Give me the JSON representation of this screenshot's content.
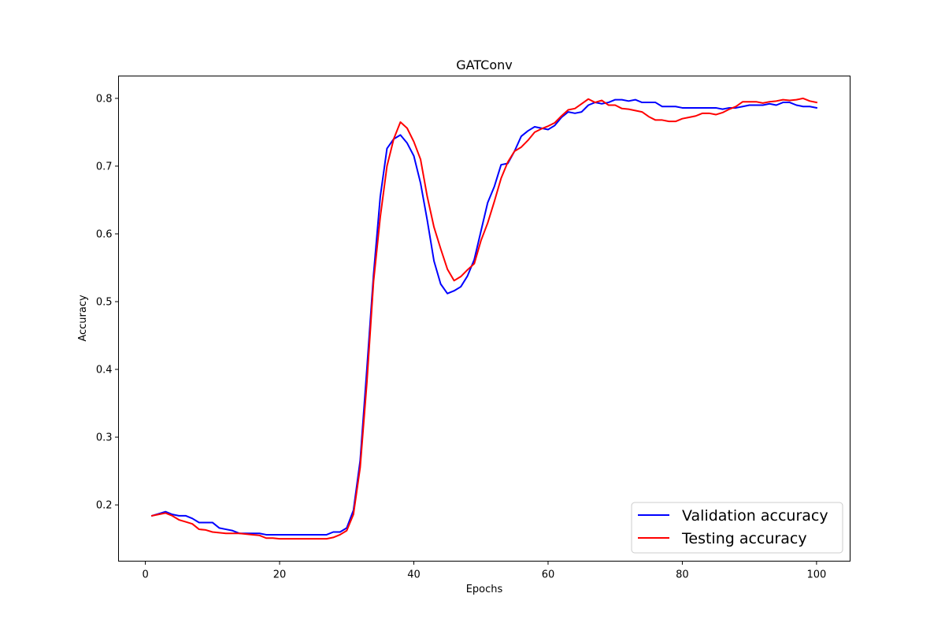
{
  "chart_data": {
    "type": "line",
    "title": "GATConv",
    "xlabel": "Epochs",
    "ylabel": "Accuracy",
    "xlim": [
      -4,
      105
    ],
    "ylim": [
      0.117,
      0.833
    ],
    "xticks": [
      0,
      20,
      40,
      60,
      80,
      100
    ],
    "yticks": [
      0.2,
      0.3,
      0.4,
      0.5,
      0.6,
      0.7,
      0.8
    ],
    "x": [
      1,
      2,
      3,
      4,
      5,
      6,
      7,
      8,
      9,
      10,
      11,
      12,
      13,
      14,
      15,
      16,
      17,
      18,
      19,
      20,
      21,
      22,
      23,
      24,
      25,
      26,
      27,
      28,
      29,
      30,
      31,
      32,
      33,
      34,
      35,
      36,
      37,
      38,
      39,
      40,
      41,
      42,
      43,
      44,
      45,
      46,
      47,
      48,
      49,
      50,
      51,
      52,
      53,
      54,
      55,
      56,
      57,
      58,
      59,
      60,
      61,
      62,
      63,
      64,
      65,
      66,
      67,
      68,
      69,
      70,
      71,
      72,
      73,
      74,
      75,
      76,
      77,
      78,
      79,
      80,
      81,
      82,
      83,
      84,
      85,
      86,
      87,
      88,
      89,
      90,
      91,
      92,
      93,
      94,
      95,
      96,
      97,
      98,
      99,
      100
    ],
    "series": [
      {
        "name": "Validation accuracy",
        "color": "#0000ff",
        "values": [
          0.184,
          0.187,
          0.19,
          0.186,
          0.184,
          0.184,
          0.18,
          0.174,
          0.174,
          0.174,
          0.166,
          0.164,
          0.162,
          0.158,
          0.158,
          0.158,
          0.158,
          0.156,
          0.156,
          0.156,
          0.156,
          0.156,
          0.156,
          0.156,
          0.156,
          0.156,
          0.156,
          0.16,
          0.16,
          0.166,
          0.192,
          0.265,
          0.4,
          0.54,
          0.655,
          0.726,
          0.74,
          0.746,
          0.734,
          0.715,
          0.675,
          0.62,
          0.56,
          0.526,
          0.512,
          0.516,
          0.522,
          0.538,
          0.562,
          0.604,
          0.646,
          0.67,
          0.702,
          0.704,
          0.722,
          0.744,
          0.752,
          0.758,
          0.756,
          0.754,
          0.76,
          0.772,
          0.78,
          0.778,
          0.78,
          0.79,
          0.794,
          0.792,
          0.794,
          0.798,
          0.798,
          0.796,
          0.798,
          0.794,
          0.794,
          0.794,
          0.788,
          0.788,
          0.788,
          0.786,
          0.786,
          0.786,
          0.786,
          0.786,
          0.786,
          0.784,
          0.786,
          0.786,
          0.788,
          0.79,
          0.79,
          0.79,
          0.792,
          0.79,
          0.794,
          0.794,
          0.79,
          0.788,
          0.788,
          0.786
        ]
      },
      {
        "name": "Testing accuracy",
        "color": "#ff0000",
        "values": [
          0.184,
          0.186,
          0.188,
          0.184,
          0.178,
          0.175,
          0.172,
          0.164,
          0.163,
          0.16,
          0.159,
          0.158,
          0.158,
          0.158,
          0.157,
          0.156,
          0.155,
          0.151,
          0.151,
          0.15,
          0.15,
          0.15,
          0.15,
          0.15,
          0.15,
          0.15,
          0.15,
          0.152,
          0.156,
          0.162,
          0.186,
          0.255,
          0.38,
          0.53,
          0.625,
          0.7,
          0.74,
          0.765,
          0.756,
          0.736,
          0.71,
          0.655,
          0.61,
          0.578,
          0.548,
          0.531,
          0.537,
          0.547,
          0.556,
          0.59,
          0.616,
          0.648,
          0.682,
          0.706,
          0.722,
          0.728,
          0.738,
          0.75,
          0.755,
          0.759,
          0.764,
          0.774,
          0.783,
          0.785,
          0.792,
          0.799,
          0.794,
          0.797,
          0.79,
          0.79,
          0.785,
          0.784,
          0.782,
          0.78,
          0.773,
          0.768,
          0.768,
          0.766,
          0.766,
          0.77,
          0.772,
          0.774,
          0.778,
          0.778,
          0.776,
          0.779,
          0.784,
          0.788,
          0.795,
          0.795,
          0.795,
          0.793,
          0.795,
          0.796,
          0.798,
          0.797,
          0.798,
          0.8,
          0.796,
          0.794
        ]
      }
    ],
    "legend": {
      "placement": "lower-right",
      "items": [
        "Validation accuracy",
        "Testing accuracy"
      ]
    },
    "grid": false
  }
}
